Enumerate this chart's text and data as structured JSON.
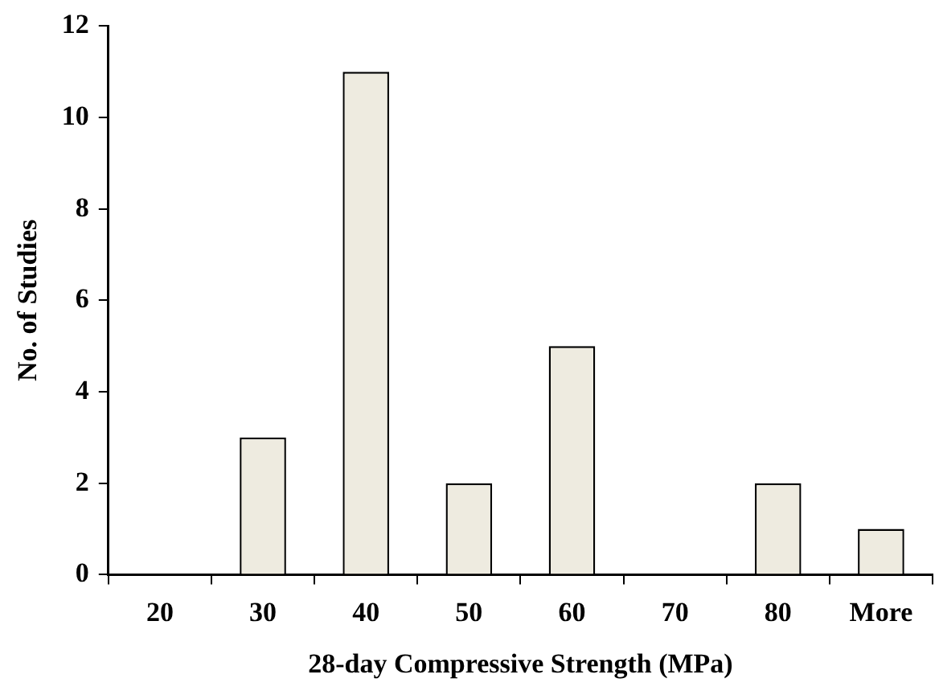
{
  "chart_data": {
    "type": "bar",
    "xlabel": "28-day Compressive Strength (MPa)",
    "ylabel": "No. of Studies",
    "categories": [
      "20",
      "30",
      "40",
      "50",
      "60",
      "70",
      "80",
      "More"
    ],
    "values": [
      0,
      3,
      11,
      2,
      5,
      0,
      2,
      1
    ],
    "color": "#eeebe0",
    "ylim": [
      0,
      12
    ],
    "yticks": [
      0,
      2,
      4,
      6,
      8,
      10,
      12
    ],
    "grid": false,
    "legend": false
  }
}
